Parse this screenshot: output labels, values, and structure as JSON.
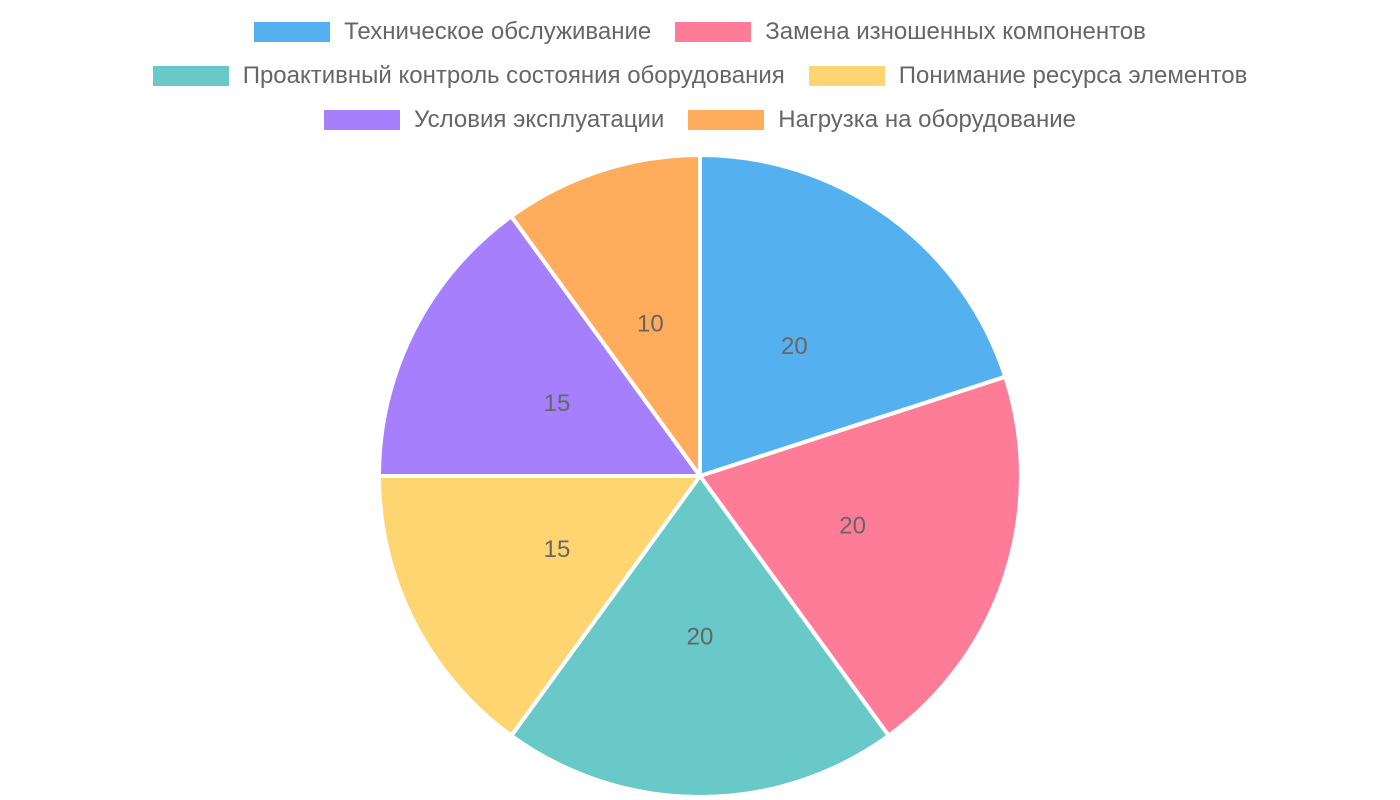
{
  "chart_data": {
    "type": "pie",
    "title": "",
    "categories": [
      "Техническое обслуживание",
      "Замена изношенных компонентов",
      "Проактивный контроль состояния оборудования",
      "Понимание ресурса элементов",
      "Условия эксплуатации",
      "Нагрузка на оборудование"
    ],
    "values": [
      20,
      20,
      20,
      15,
      15,
      10
    ],
    "colors": [
      "#54b0ee",
      "#ff7c98",
      "#68c9c8",
      "#ffd572",
      "#a67ffd",
      "#ffad5c"
    ],
    "legend_position": "top",
    "data_labels": [
      "20",
      "20",
      "20",
      "15",
      "15",
      "10"
    ]
  },
  "legend": {
    "rows": [
      [
        0,
        1
      ],
      [
        2,
        3
      ],
      [
        4,
        5
      ]
    ]
  }
}
